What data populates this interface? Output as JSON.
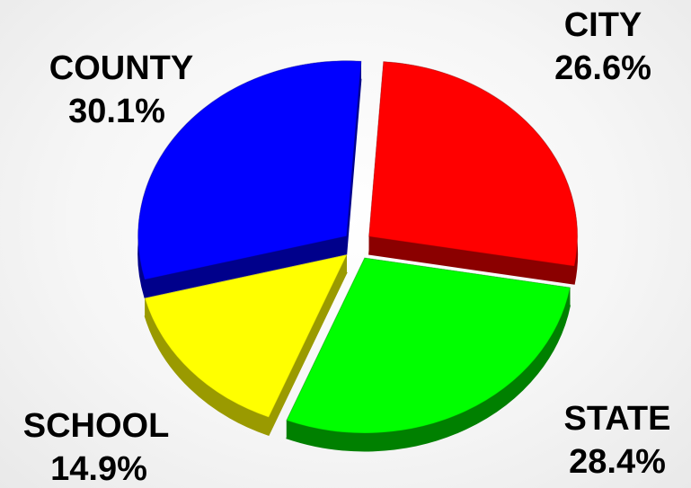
{
  "chart_data": {
    "type": "pie",
    "title": "",
    "slices": [
      {
        "label": "CITY",
        "value": 26.6,
        "percent_label": "26.6%",
        "color": "#ff0000",
        "side_color": "#8b0000"
      },
      {
        "label": "STATE",
        "value": 28.4,
        "percent_label": "28.4%",
        "color": "#00ff00",
        "side_color": "#008000"
      },
      {
        "label": "SCHOOL",
        "value": 14.9,
        "percent_label": "14.9%",
        "color": "#ffff00",
        "side_color": "#9a9a00"
      },
      {
        "label": "COUNTY",
        "value": 30.1,
        "percent_label": "30.1%",
        "color": "#0000ff",
        "side_color": "#00008b"
      }
    ],
    "style": "3d-exploded",
    "legend": "none",
    "labels_position": "outside"
  }
}
